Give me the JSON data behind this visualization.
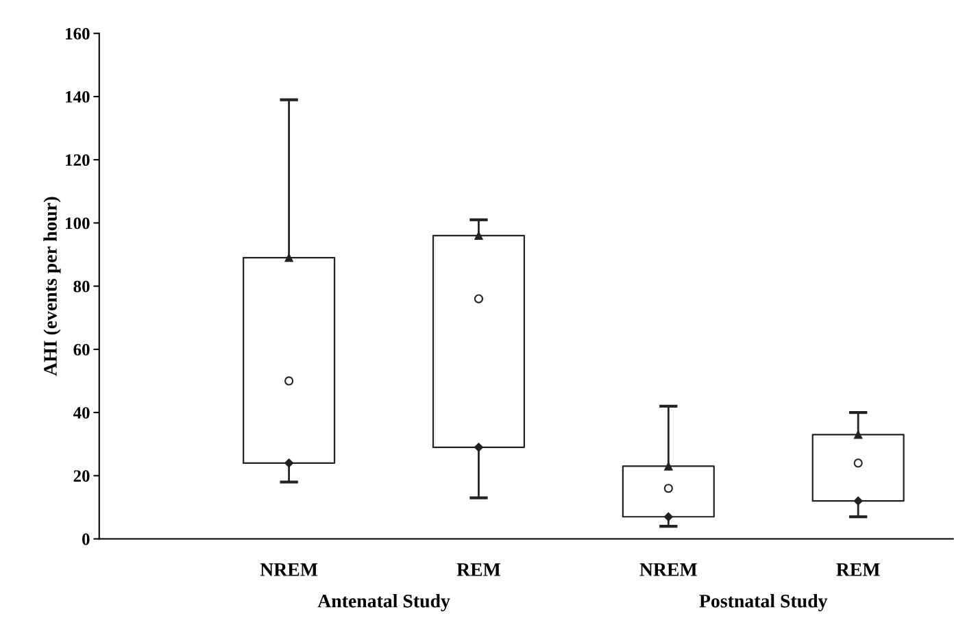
{
  "chart_data": {
    "type": "box",
    "ylabel": "AHI (events per hour)",
    "categories": [
      "NREM",
      "REM",
      "NREM",
      "REM"
    ],
    "boxes": [
      {
        "low": 18,
        "q1": 24,
        "median": 50,
        "q3": 89,
        "high": 139
      },
      {
        "low": 13,
        "q1": 29,
        "median": 76,
        "q3": 96,
        "high": 101
      },
      {
        "low": 4,
        "q1": 7,
        "median": 16,
        "q3": 23,
        "high": 42
      },
      {
        "low": 7,
        "q1": 12,
        "median": 24,
        "q3": 33,
        "high": 40
      }
    ],
    "series": [
      {
        "type": "scatter",
        "marker": "triangle",
        "values": [
          89,
          96,
          23,
          33
        ]
      },
      {
        "type": "scatter",
        "marker": "diamond",
        "values": [
          24,
          29,
          7,
          12
        ]
      }
    ],
    "ylim": [
      0,
      160
    ],
    "yticks": [
      0,
      20,
      40,
      60,
      80,
      100,
      120,
      140,
      160
    ],
    "grid": false,
    "annotations": [
      "Antenatal Study",
      "Postnatal Study"
    ]
  }
}
